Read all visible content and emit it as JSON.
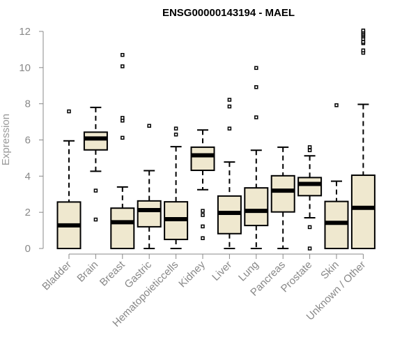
{
  "chart_data": {
    "type": "boxplot",
    "title": "ENSG00000143194 - MAEL",
    "xlabel": "",
    "ylabel": "Expression",
    "ylim": [
      0,
      12
    ],
    "yticks": [
      0,
      2,
      4,
      6,
      8,
      10,
      12
    ],
    "categories": [
      "Bladder",
      "Brain",
      "Breast",
      "Gastric",
      "Hematopoieticcells",
      "Kidney",
      "Liver",
      "Lung",
      "Pancreas",
      "Prostate",
      "Skin",
      "Unknown / Other"
    ],
    "boxes": [
      {
        "whisker_low": 0.0,
        "q1": 0.0,
        "median": 1.28,
        "q3": 2.57,
        "whisker_high": 5.95,
        "outliers": [
          7.58
        ]
      },
      {
        "whisker_low": 4.27,
        "q1": 5.45,
        "median": 6.08,
        "q3": 6.43,
        "whisker_high": 7.8,
        "outliers": [
          3.2,
          1.6
        ]
      },
      {
        "whisker_low": 0.0,
        "q1": 0.0,
        "median": 1.45,
        "q3": 2.23,
        "whisker_high": 3.4,
        "outliers": [
          6.12,
          7.07,
          7.22,
          10.07,
          10.7
        ]
      },
      {
        "whisker_low": 0.0,
        "q1": 1.2,
        "median": 2.12,
        "q3": 2.63,
        "whisker_high": 4.3,
        "outliers": [
          6.78
        ]
      },
      {
        "whisker_low": 0.0,
        "q1": 0.5,
        "median": 1.62,
        "q3": 2.58,
        "whisker_high": 5.63,
        "outliers": [
          6.3,
          6.63
        ]
      },
      {
        "whisker_low": 3.25,
        "q1": 4.32,
        "median": 5.15,
        "q3": 5.6,
        "whisker_high": 6.55,
        "outliers": [
          2.08,
          1.85,
          1.22,
          0.57
        ]
      },
      {
        "whisker_low": 0.0,
        "q1": 0.82,
        "median": 1.97,
        "q3": 2.9,
        "whisker_high": 4.78,
        "outliers": [
          6.63,
          7.85,
          8.22
        ]
      },
      {
        "whisker_low": 0.0,
        "q1": 1.27,
        "median": 2.08,
        "q3": 3.35,
        "whisker_high": 5.43,
        "outliers": [
          7.25,
          8.92,
          9.98
        ]
      },
      {
        "whisker_low": 0.0,
        "q1": 2.02,
        "median": 3.2,
        "q3": 4.02,
        "whisker_high": 5.6,
        "outliers": []
      },
      {
        "whisker_low": 1.7,
        "q1": 2.92,
        "median": 3.57,
        "q3": 3.92,
        "whisker_high": 5.12,
        "outliers": [
          5.43,
          5.6,
          1.18,
          0.0
        ]
      },
      {
        "whisker_low": 0.0,
        "q1": 0.0,
        "median": 1.42,
        "q3": 2.6,
        "whisker_high": 3.72,
        "outliers": [
          7.92
        ]
      },
      {
        "whisker_low": 0.0,
        "q1": 0.0,
        "median": 2.25,
        "q3": 4.05,
        "whisker_high": 7.97,
        "outliers": [
          10.82,
          10.95,
          11.35,
          11.42,
          11.58,
          11.72,
          11.8,
          11.88,
          11.97,
          12.05
        ]
      }
    ],
    "colors": {
      "box_fill": "#efe8cf",
      "box_stroke": "#000000",
      "axis": "#888888",
      "title": "#000000"
    },
    "grid": false,
    "legend": "none"
  }
}
